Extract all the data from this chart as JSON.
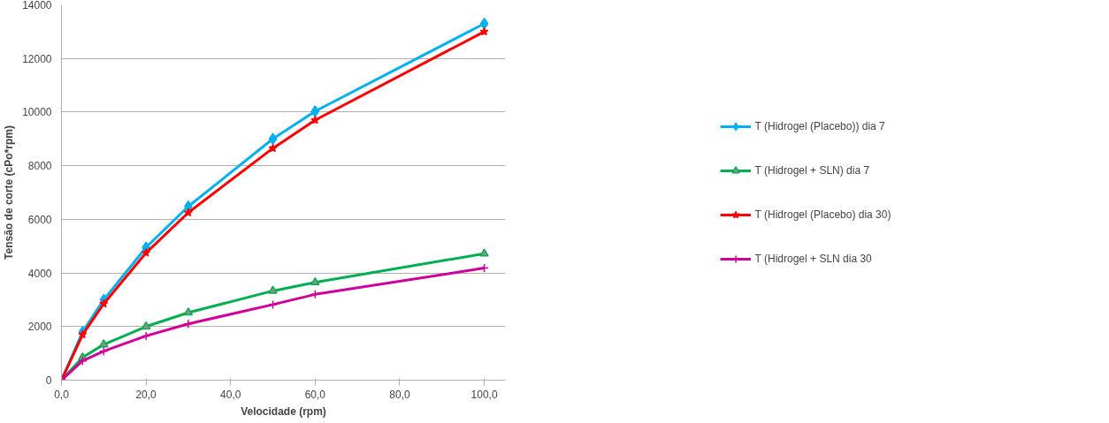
{
  "chart_data": {
    "type": "line",
    "xlabel": "Velocidade (rpm)",
    "ylabel": "Tensão de corte (cPo*rpm)",
    "x": [
      0,
      5,
      10,
      20,
      30,
      50,
      60,
      100
    ],
    "xlim": [
      0,
      105
    ],
    "xticks": [
      {
        "value": 0,
        "label": "0,0"
      },
      {
        "value": 20,
        "label": "20,0"
      },
      {
        "value": 40,
        "label": "40,0"
      },
      {
        "value": 60,
        "label": "60,0"
      },
      {
        "value": 80,
        "label": "80,0"
      },
      {
        "value": 100,
        "label": "100,0"
      }
    ],
    "ylim": [
      0,
      14000
    ],
    "yticks": [
      0,
      2000,
      4000,
      6000,
      8000,
      10000,
      12000,
      14000
    ],
    "grid": "y",
    "legend": "right",
    "series": [
      {
        "name": "T (Hidrogel (Placebo)) dia 7",
        "color": "#00b0f0",
        "marker": "diamond",
        "values": [
          0,
          1800,
          3000,
          4950,
          6480,
          9000,
          10030,
          13300
        ]
      },
      {
        "name": "T (Hidrogel + SLN) dia 7",
        "color": "#00b050",
        "marker": "triangle",
        "values": [
          0,
          850,
          1330,
          2000,
          2520,
          3330,
          3650,
          4720
        ]
      },
      {
        "name": "T (Hidrogel (Placebo) dia 30)",
        "color": "#ff0000",
        "marker": "star",
        "values": [
          0,
          1700,
          2850,
          4750,
          6250,
          8650,
          9700,
          13000
        ]
      },
      {
        "name": "T (Hidrogel + SLN dia 30",
        "color": "#d0009a",
        "marker": "cross",
        "values": [
          0,
          720,
          1080,
          1650,
          2100,
          2820,
          3200,
          4180
        ]
      }
    ]
  }
}
